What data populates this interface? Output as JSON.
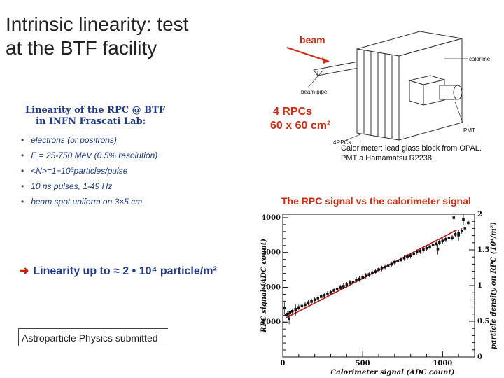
{
  "slide": {
    "title_line1": "Intrinsic linearity: test",
    "title_line2": "at the BTF facility"
  },
  "box": {
    "title_line1": "Linearity of the RPC @ BTF",
    "title_line2": "in INFN Frascati Lab:",
    "bullets": [
      "electrons (or positrons)",
      "E = 25-750 MeV (0.5% resolution)",
      "<N>=1÷10⁵particles/pulse",
      "10 ns pulses, 1-49 Hz",
      "beam spot uniform on 3×5 cm"
    ],
    "linearity": "Linearity up to ≈ 2 • 10⁴ particle/m²",
    "submitted": "Astroparticle Physics submitted"
  },
  "setup": {
    "beam": "beam",
    "beam_pipe": "beam pipe",
    "calorimeter": "calorimeter",
    "pmt": "PMT",
    "rpcs_small": "4RPCs",
    "rpc_line1": "4 RPCs",
    "rpc_line2": "60 x 60 cm²",
    "calo_text_line1": "Calorimeter: lead glass block from OPAL.",
    "calo_text_line2": "PMT a Hamamatsu R2238."
  },
  "colors": {
    "accent_red": "#d12a12",
    "text_blue": "#1f3a8a",
    "fit_line": "#cc1111"
  },
  "chart_data": {
    "type": "scatter",
    "title": "The RPC signal vs the calorimeter signal",
    "xlabel": "Calorimeter signal (ADC count)",
    "ylabel": "RPC signal (ADC count)",
    "y2label": "particle density on RPC (10⁴/m²)",
    "xlim": [
      0,
      1200
    ],
    "ylim": [
      0,
      4100
    ],
    "y2lim": [
      0,
      2
    ],
    "x_ticks": [
      0,
      500,
      1000
    ],
    "y_ticks": [
      1000,
      2000,
      3000,
      4000
    ],
    "y2_ticks": [
      0,
      0.5,
      1,
      1.5,
      2
    ],
    "x_tick_labels": [
      "0",
      "500",
      "1000"
    ],
    "y_tick_labels": [
      "1000",
      "2000",
      "3000",
      "4000"
    ],
    "y2_tick_labels": [
      "0",
      "0.5",
      "1",
      "1.5",
      "2"
    ],
    "grid": false,
    "fit_line": {
      "x": [
        20,
        1090
      ],
      "y": [
        1120,
        3650
      ]
    },
    "points": {
      "x": [
        20,
        30,
        45,
        60,
        80,
        100,
        120,
        140,
        160,
        180,
        200,
        220,
        240,
        260,
        280,
        300,
        320,
        340,
        360,
        380,
        400,
        420,
        440,
        460,
        480,
        500,
        520,
        540,
        560,
        580,
        600,
        620,
        640,
        660,
        680,
        700,
        720,
        740,
        760,
        780,
        800,
        820,
        840,
        860,
        880,
        900,
        920,
        940,
        960,
        980,
        1000,
        1020,
        1040,
        1060,
        1080,
        1100,
        1120,
        1140,
        1160
      ],
      "y": [
        1200,
        1230,
        1280,
        1310,
        1370,
        1420,
        1460,
        1500,
        1560,
        1590,
        1640,
        1690,
        1730,
        1770,
        1810,
        1850,
        1910,
        1950,
        1990,
        2030,
        2070,
        2130,
        2150,
        2210,
        2240,
        2290,
        2330,
        2370,
        2420,
        2450,
        2510,
        2540,
        2580,
        2630,
        2660,
        2720,
        2750,
        2790,
        2840,
        2880,
        2910,
        2960,
        3010,
        3040,
        3080,
        3120,
        3170,
        3210,
        3250,
        3290,
        3330,
        3380,
        3420,
        3430,
        3520,
        3560,
        3620,
        3700,
        3850
      ]
    },
    "outliers": {
      "x": [
        10,
        40,
        80,
        970,
        1070,
        1100,
        1130
      ],
      "y": [
        1400,
        1100,
        1350,
        3100,
        4000,
        3500,
        3950
      ]
    }
  }
}
